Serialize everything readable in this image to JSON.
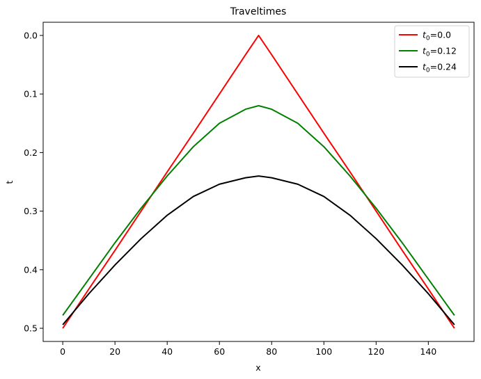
{
  "chart_data": {
    "type": "line",
    "title": "Traveltimes",
    "xlabel": "x",
    "ylabel": "t",
    "xlim": [
      -7.5,
      157.5
    ],
    "ylim": [
      0.5225,
      -0.0225
    ],
    "y_inverted": true,
    "grid": false,
    "legend_position": "top-right",
    "xticks": [
      0,
      20,
      40,
      60,
      80,
      100,
      120,
      140
    ],
    "xtick_labels": [
      "0",
      "20",
      "40",
      "60",
      "80",
      "100",
      "120",
      "140"
    ],
    "yticks": [
      0.0,
      0.1,
      0.2,
      0.3,
      0.4,
      0.5
    ],
    "ytick_labels": [
      "0.0",
      "0.1",
      "0.2",
      "0.3",
      "0.4",
      "0.5"
    ],
    "x": [
      0,
      10,
      20,
      30,
      40,
      50,
      60,
      70,
      75,
      80,
      90,
      100,
      110,
      120,
      130,
      140,
      150
    ],
    "series": [
      {
        "name_prefix": "t",
        "name_sub": "0",
        "name_suffix": "=0.0",
        "color": "#ff0000",
        "values": [
          0.5,
          0.433,
          0.367,
          0.3,
          0.233,
          0.167,
          0.1,
          0.033,
          0.0,
          0.033,
          0.1,
          0.167,
          0.233,
          0.3,
          0.367,
          0.433,
          0.5
        ]
      },
      {
        "name_prefix": "t",
        "name_sub": "0",
        "name_suffix": "=0.12",
        "color": "#008000",
        "values": [
          0.478,
          0.416,
          0.354,
          0.295,
          0.24,
          0.19,
          0.15,
          0.126,
          0.12,
          0.126,
          0.15,
          0.19,
          0.24,
          0.295,
          0.354,
          0.416,
          0.478
        ]
      },
      {
        "name_prefix": "t",
        "name_sub": "0",
        "name_suffix": "=0.24",
        "color": "#000000",
        "values": [
          0.494,
          0.441,
          0.392,
          0.347,
          0.307,
          0.275,
          0.254,
          0.243,
          0.24,
          0.243,
          0.254,
          0.275,
          0.307,
          0.347,
          0.392,
          0.441,
          0.494
        ]
      }
    ]
  }
}
